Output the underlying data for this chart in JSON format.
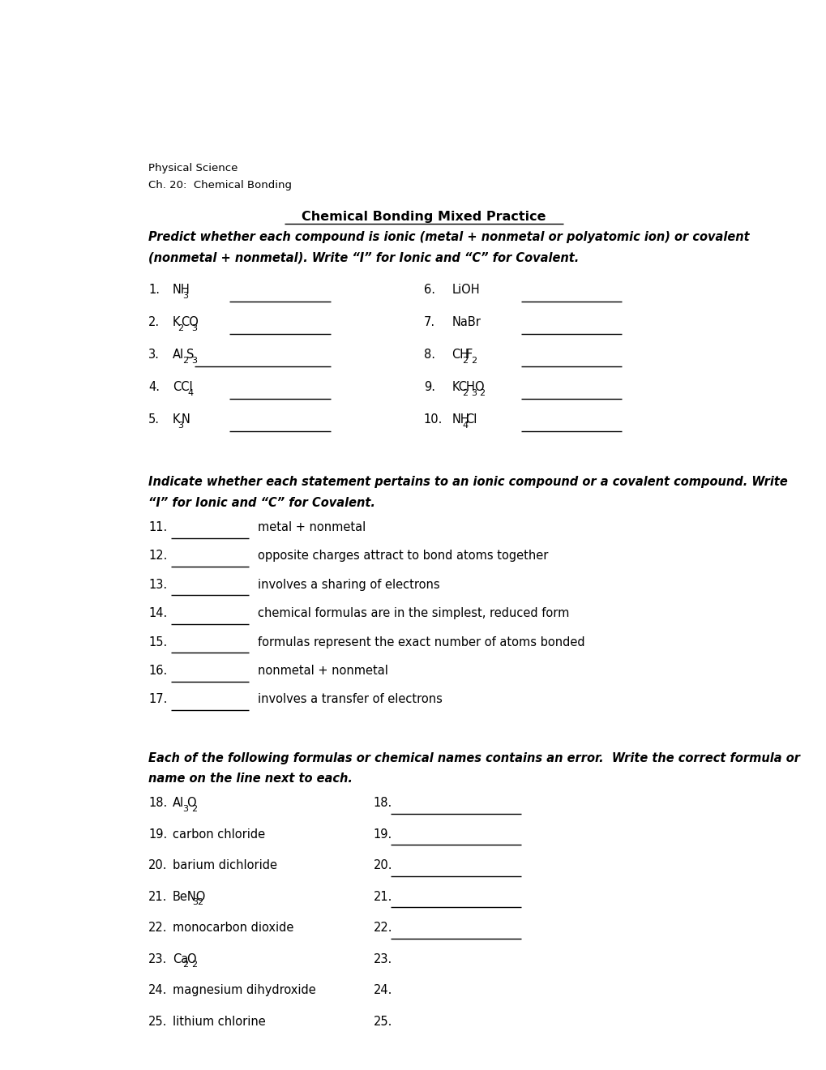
{
  "bg_color": "#ffffff",
  "header_line1": "Physical Science",
  "header_line2": "Ch. 20:  Chemical Bonding",
  "title": "Chemical Bonding Mixed Practice",
  "subtitle_line1": "Predict whether each compound is ionic (metal + nonmetal or polyatomic ion) or covalent",
  "subtitle_line2": "(nonmetal + nonmetal). Write “I” for Ionic and “C” for Covalent.",
  "section2_line1": "Indicate whether each statement pertains to an ionic compound or a covalent compound. Write",
  "section2_line2": "“I” for Ionic and “C” for Covalent.",
  "section3_line1": "Each of the following formulas or chemical names contains an error.  Write the correct formula or",
  "section3_line2": "name on the line next to each.",
  "statements": [
    {
      "num": "11.",
      "text": "metal + nonmetal"
    },
    {
      "num": "12.",
      "text": "opposite charges attract to bond atoms together"
    },
    {
      "num": "13.",
      "text": "involves a sharing of electrons"
    },
    {
      "num": "14.",
      "text": "chemical formulas are in the simplest, reduced form"
    },
    {
      "num": "15.",
      "text": "formulas represent the exact number of atoms bonded"
    },
    {
      "num": "16.",
      "text": "nonmetal + nonmetal"
    },
    {
      "num": "17.",
      "text": "involves a transfer of electrons"
    }
  ]
}
